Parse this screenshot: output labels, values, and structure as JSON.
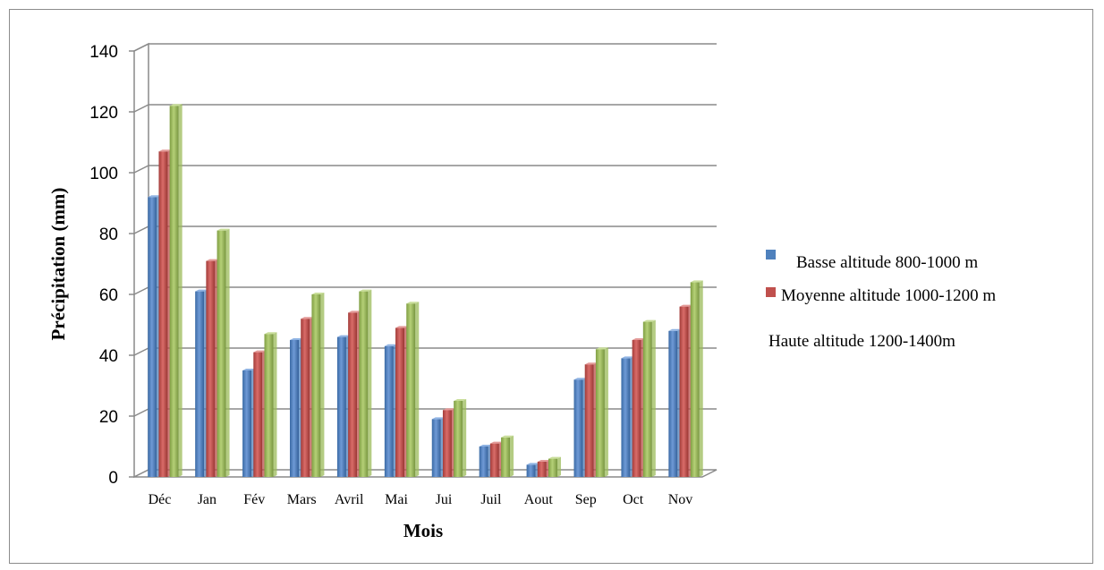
{
  "chart_data": {
    "type": "bar",
    "xlabel": "Mois",
    "ylabel": "Précipitation (mm)",
    "ylim": [
      0,
      140
    ],
    "yticks": [
      0,
      20,
      40,
      60,
      80,
      100,
      120,
      140
    ],
    "grid": true,
    "legend_position": "right",
    "categories": [
      "Déc",
      "Jan",
      "Fév",
      "Mars",
      "Avril",
      "Mai",
      "Jui",
      "Juil",
      "Aout",
      "Sep",
      "Oct",
      "Nov"
    ],
    "series": [
      {
        "name": "Basse altitude 800-1000 m",
        "color": "#4f81bd",
        "values": [
          92,
          61,
          35,
          45,
          46,
          43,
          19,
          10,
          4,
          32,
          39,
          48
        ]
      },
      {
        "name": "Moyenne altitude 1000-1200 m",
        "color": "#c0504d",
        "values": [
          107,
          71,
          41,
          52,
          54,
          49,
          22,
          11,
          5,
          37,
          45,
          56
        ]
      },
      {
        "name": "Haute altitude 1200-1400m",
        "color": "#9bbb59",
        "values": [
          122,
          81,
          47,
          60,
          61,
          57,
          25,
          13,
          6,
          42,
          51,
          64
        ]
      }
    ]
  }
}
